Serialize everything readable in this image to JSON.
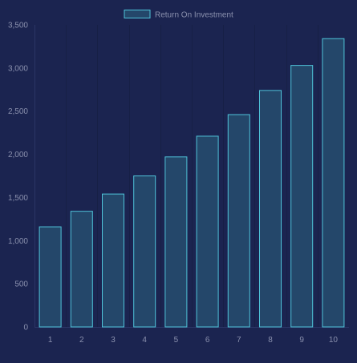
{
  "chart_data": {
    "type": "bar",
    "categories": [
      "1",
      "2",
      "3",
      "4",
      "5",
      "6",
      "7",
      "8",
      "9",
      "10"
    ],
    "series": [
      {
        "name": "Return On Investment",
        "values": [
          1160,
          1340,
          1540,
          1750,
          1970,
          2210,
          2460,
          2740,
          3030,
          3340
        ]
      }
    ],
    "ylim": [
      0,
      3500
    ],
    "yticks": [
      "0",
      "500",
      "1,000",
      "1,500",
      "2,000",
      "2,500",
      "3,000",
      "3,500"
    ],
    "grid": "vertical",
    "legend_position": "top-center",
    "colors": {
      "background": "#1b2450",
      "bar_fill": "#24476a",
      "bar_stroke": "#4fc3d9",
      "text": "#8a90ad",
      "axis_line": "#2b3566",
      "grid_line": "#172046"
    }
  }
}
